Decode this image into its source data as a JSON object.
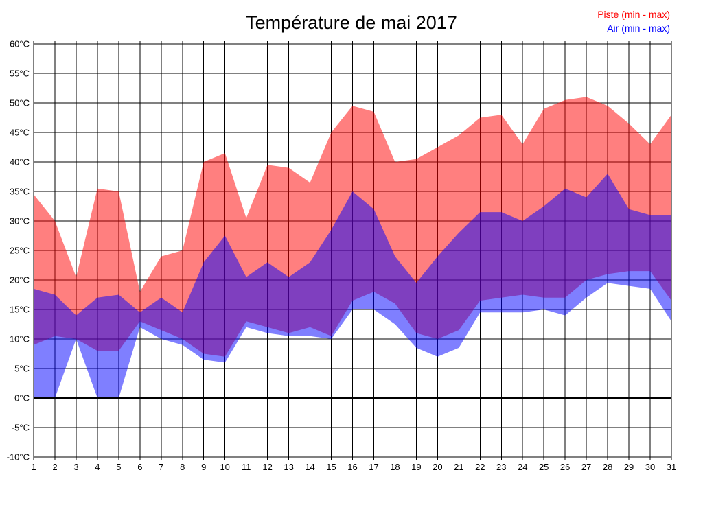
{
  "title": "Température de mai 2017",
  "legend": {
    "items": [
      {
        "label": "Piste (min - max)",
        "color": "#ff0000"
      },
      {
        "label": "Air (min - max)",
        "color": "#0000ff"
      }
    ]
  },
  "chart_data": {
    "type": "area",
    "title": "Température de mai 2017",
    "x": [
      1,
      2,
      3,
      4,
      5,
      6,
      7,
      8,
      9,
      10,
      11,
      12,
      13,
      14,
      15,
      16,
      17,
      18,
      19,
      20,
      21,
      22,
      23,
      24,
      25,
      26,
      27,
      28,
      29,
      30,
      31
    ],
    "ylim": [
      -10,
      60
    ],
    "ytick_step": 5,
    "y_unit": "°C",
    "grid": true,
    "zero_line": true,
    "legend_position": "top-right",
    "series": [
      {
        "name": "Piste (min - max)",
        "color": "#ff0000",
        "fill_opacity": 0.5,
        "max": [
          34.5,
          30,
          20.5,
          35.5,
          35,
          18,
          24,
          25,
          40,
          41.5,
          30.5,
          39.5,
          39,
          36.5,
          45,
          49.5,
          48.5,
          40,
          40.5,
          42.5,
          44.5,
          47.5,
          48,
          43,
          49,
          50.5,
          51,
          49.5,
          46.5,
          43,
          48
        ],
        "min": [
          9,
          10.5,
          10,
          8,
          8,
          13,
          11.5,
          10,
          7.5,
          7,
          13,
          12,
          11,
          12,
          10.5,
          16.5,
          18,
          16,
          11,
          10,
          11.5,
          16.5,
          17,
          17.5,
          17,
          17,
          20,
          21,
          21.5,
          21.5,
          16.5
        ]
      },
      {
        "name": "Air (min - max)",
        "color": "#0000ff",
        "fill_opacity": 0.5,
        "max": [
          18.5,
          17.5,
          14,
          17,
          17.5,
          14.5,
          17,
          14.5,
          23,
          27.5,
          20.5,
          23,
          20.5,
          23,
          28.5,
          35,
          32,
          24,
          19.5,
          24,
          28,
          31.5,
          31.5,
          30,
          32.5,
          35.5,
          34,
          38,
          32,
          31,
          31
        ],
        "min": [
          0,
          0,
          10,
          0,
          0,
          12,
          10,
          9,
          6.5,
          6,
          12,
          11,
          10.5,
          10.5,
          10,
          15,
          15,
          12.5,
          8.5,
          7,
          8.5,
          14.5,
          14.5,
          14.5,
          15,
          14,
          17,
          19.5,
          19,
          18.5,
          13
        ]
      }
    ]
  },
  "axes": {
    "y_labels": [
      "60°C",
      "55°C",
      "50°C",
      "45°C",
      "40°C",
      "35°C",
      "30°C",
      "25°C",
      "20°C",
      "15°C",
      "10°C",
      "5°C",
      "0°C",
      "-5°C",
      "-10°C"
    ],
    "x_labels": [
      "1",
      "2",
      "3",
      "4",
      "5",
      "6",
      "7",
      "8",
      "9",
      "10",
      "11",
      "12",
      "13",
      "14",
      "15",
      "16",
      "17",
      "18",
      "19",
      "20",
      "21",
      "22",
      "23",
      "24",
      "25",
      "26",
      "27",
      "28",
      "29",
      "30",
      "31"
    ]
  }
}
